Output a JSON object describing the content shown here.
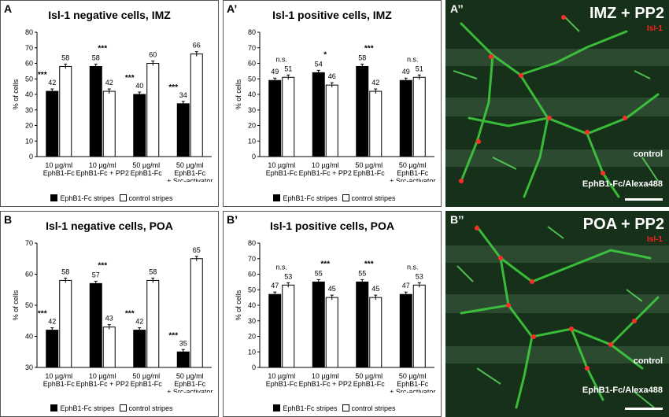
{
  "legend": {
    "black": "EphB1-Fc stripes",
    "white": "control stripes"
  },
  "categories": [
    "10 µg/ml\nEphB1-Fc",
    "10 µg/ml\nEphB1-Fc + PP2",
    "50 µg/ml\nEphB1-Fc",
    "50 µg/ml\nEphB1-Fc\n+ Src-activator"
  ],
  "chart_data": [
    {
      "label": "A",
      "type": "bar",
      "title": "Isl-1 negative cells, IMZ",
      "ylabel": "% of cells",
      "ylim": [
        0,
        80
      ],
      "yticks": [
        0,
        10,
        20,
        30,
        40,
        50,
        60,
        70,
        80
      ],
      "series": [
        {
          "name": "EphB1-Fc stripes",
          "values": [
            42,
            58,
            40,
            34
          ]
        },
        {
          "name": "control stripes",
          "values": [
            58,
            42,
            60,
            66
          ]
        }
      ],
      "significance": [
        "***",
        "***",
        "***",
        "***"
      ]
    },
    {
      "label": "A’",
      "type": "bar",
      "title": "Isl-1 positive cells, IMZ",
      "ylabel": "% of cells",
      "ylim": [
        0,
        80
      ],
      "yticks": [
        0,
        10,
        20,
        30,
        40,
        50,
        60,
        70,
        80
      ],
      "series": [
        {
          "name": "EphB1-Fc stripes",
          "values": [
            49,
            54,
            58,
            49
          ]
        },
        {
          "name": "control stripes",
          "values": [
            51,
            46,
            42,
            51
          ]
        }
      ],
      "significance": [
        "n.s.",
        "*",
        "***",
        "n.s."
      ]
    },
    {
      "label": "B",
      "type": "bar",
      "title": "Isl-1 negative cells, POA",
      "ylabel": "% of cells",
      "ylim": [
        30,
        70
      ],
      "yticks": [
        30,
        40,
        50,
        60,
        70
      ],
      "series": [
        {
          "name": "EphB1-Fc stripes",
          "values": [
            42,
            57,
            42,
            35
          ]
        },
        {
          "name": "control stripes",
          "values": [
            58,
            43,
            58,
            65
          ]
        }
      ],
      "significance": [
        "***",
        "***",
        "***",
        "***"
      ]
    },
    {
      "label": "B’",
      "type": "bar",
      "title": "Isl-1 positive cells, POA",
      "ylabel": "% of cells",
      "ylim": [
        0,
        80
      ],
      "yticks": [
        0,
        10,
        20,
        30,
        40,
        50,
        60,
        70,
        80
      ],
      "series": [
        {
          "name": "EphB1-Fc stripes",
          "values": [
            47,
            55,
            55,
            47
          ]
        },
        {
          "name": "control stripes",
          "values": [
            53,
            45,
            45,
            53
          ]
        }
      ],
      "significance": [
        "n.s.",
        "***",
        "***",
        "n.s."
      ]
    }
  ],
  "micrographs": [
    {
      "label": "A’’",
      "title": "IMZ + PP2",
      "marker": "Isl-1",
      "control": "control",
      "stripe": "EphB1-Fc/Alexa488"
    },
    {
      "label": "B’’",
      "title": "POA + PP2",
      "marker": "Isl-1",
      "control": "control",
      "stripe": "EphB1-Fc/Alexa488"
    }
  ]
}
